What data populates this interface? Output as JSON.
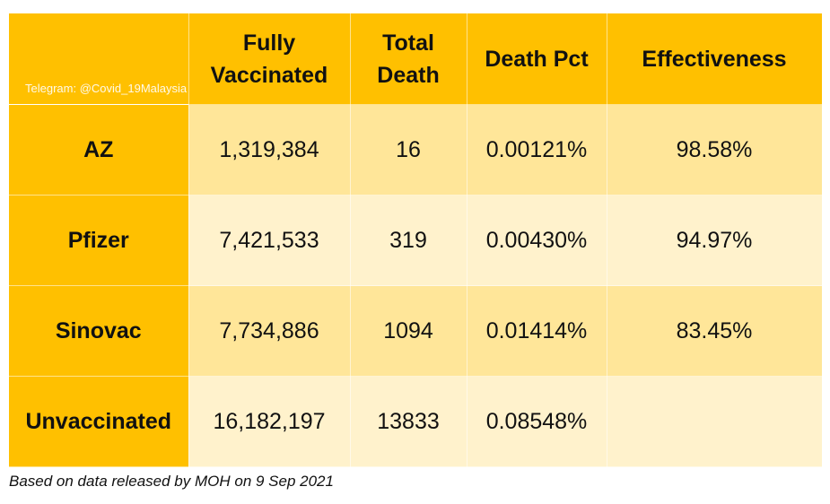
{
  "watermark": "Telegram: @Covid_19Malaysia",
  "chart_data": {
    "type": "table",
    "columns": [
      "",
      "Fully Vaccinated",
      "Total Death",
      "Death Pct",
      "Effectiveness"
    ],
    "header_lines": [
      [
        ""
      ],
      [
        "Fully",
        "Vaccinated"
      ],
      [
        "Total",
        "Death"
      ],
      [
        "Death Pct"
      ],
      [
        "Effectiveness"
      ]
    ],
    "rows": [
      {
        "label": "AZ",
        "fully_vaccinated": "1,319,384",
        "total_death": "16",
        "death_pct": "0.00121%",
        "effectiveness": "98.58%"
      },
      {
        "label": "Pfizer",
        "fully_vaccinated": "7,421,533",
        "total_death": "319",
        "death_pct": "0.00430%",
        "effectiveness": "94.97%"
      },
      {
        "label": "Sinovac",
        "fully_vaccinated": "7,734,886",
        "total_death": "1094",
        "death_pct": "0.01414%",
        "effectiveness": "83.45%"
      },
      {
        "label": "Unvaccinated",
        "fully_vaccinated": "16,182,197",
        "total_death": "13833",
        "death_pct": "0.08548%",
        "effectiveness": ""
      }
    ]
  },
  "footnote": "Based on data released by MOH on 9 Sep 2021",
  "colors": {
    "header": "#ffc000",
    "row_odd": "#ffe699",
    "row_even": "#fff2cc"
  }
}
